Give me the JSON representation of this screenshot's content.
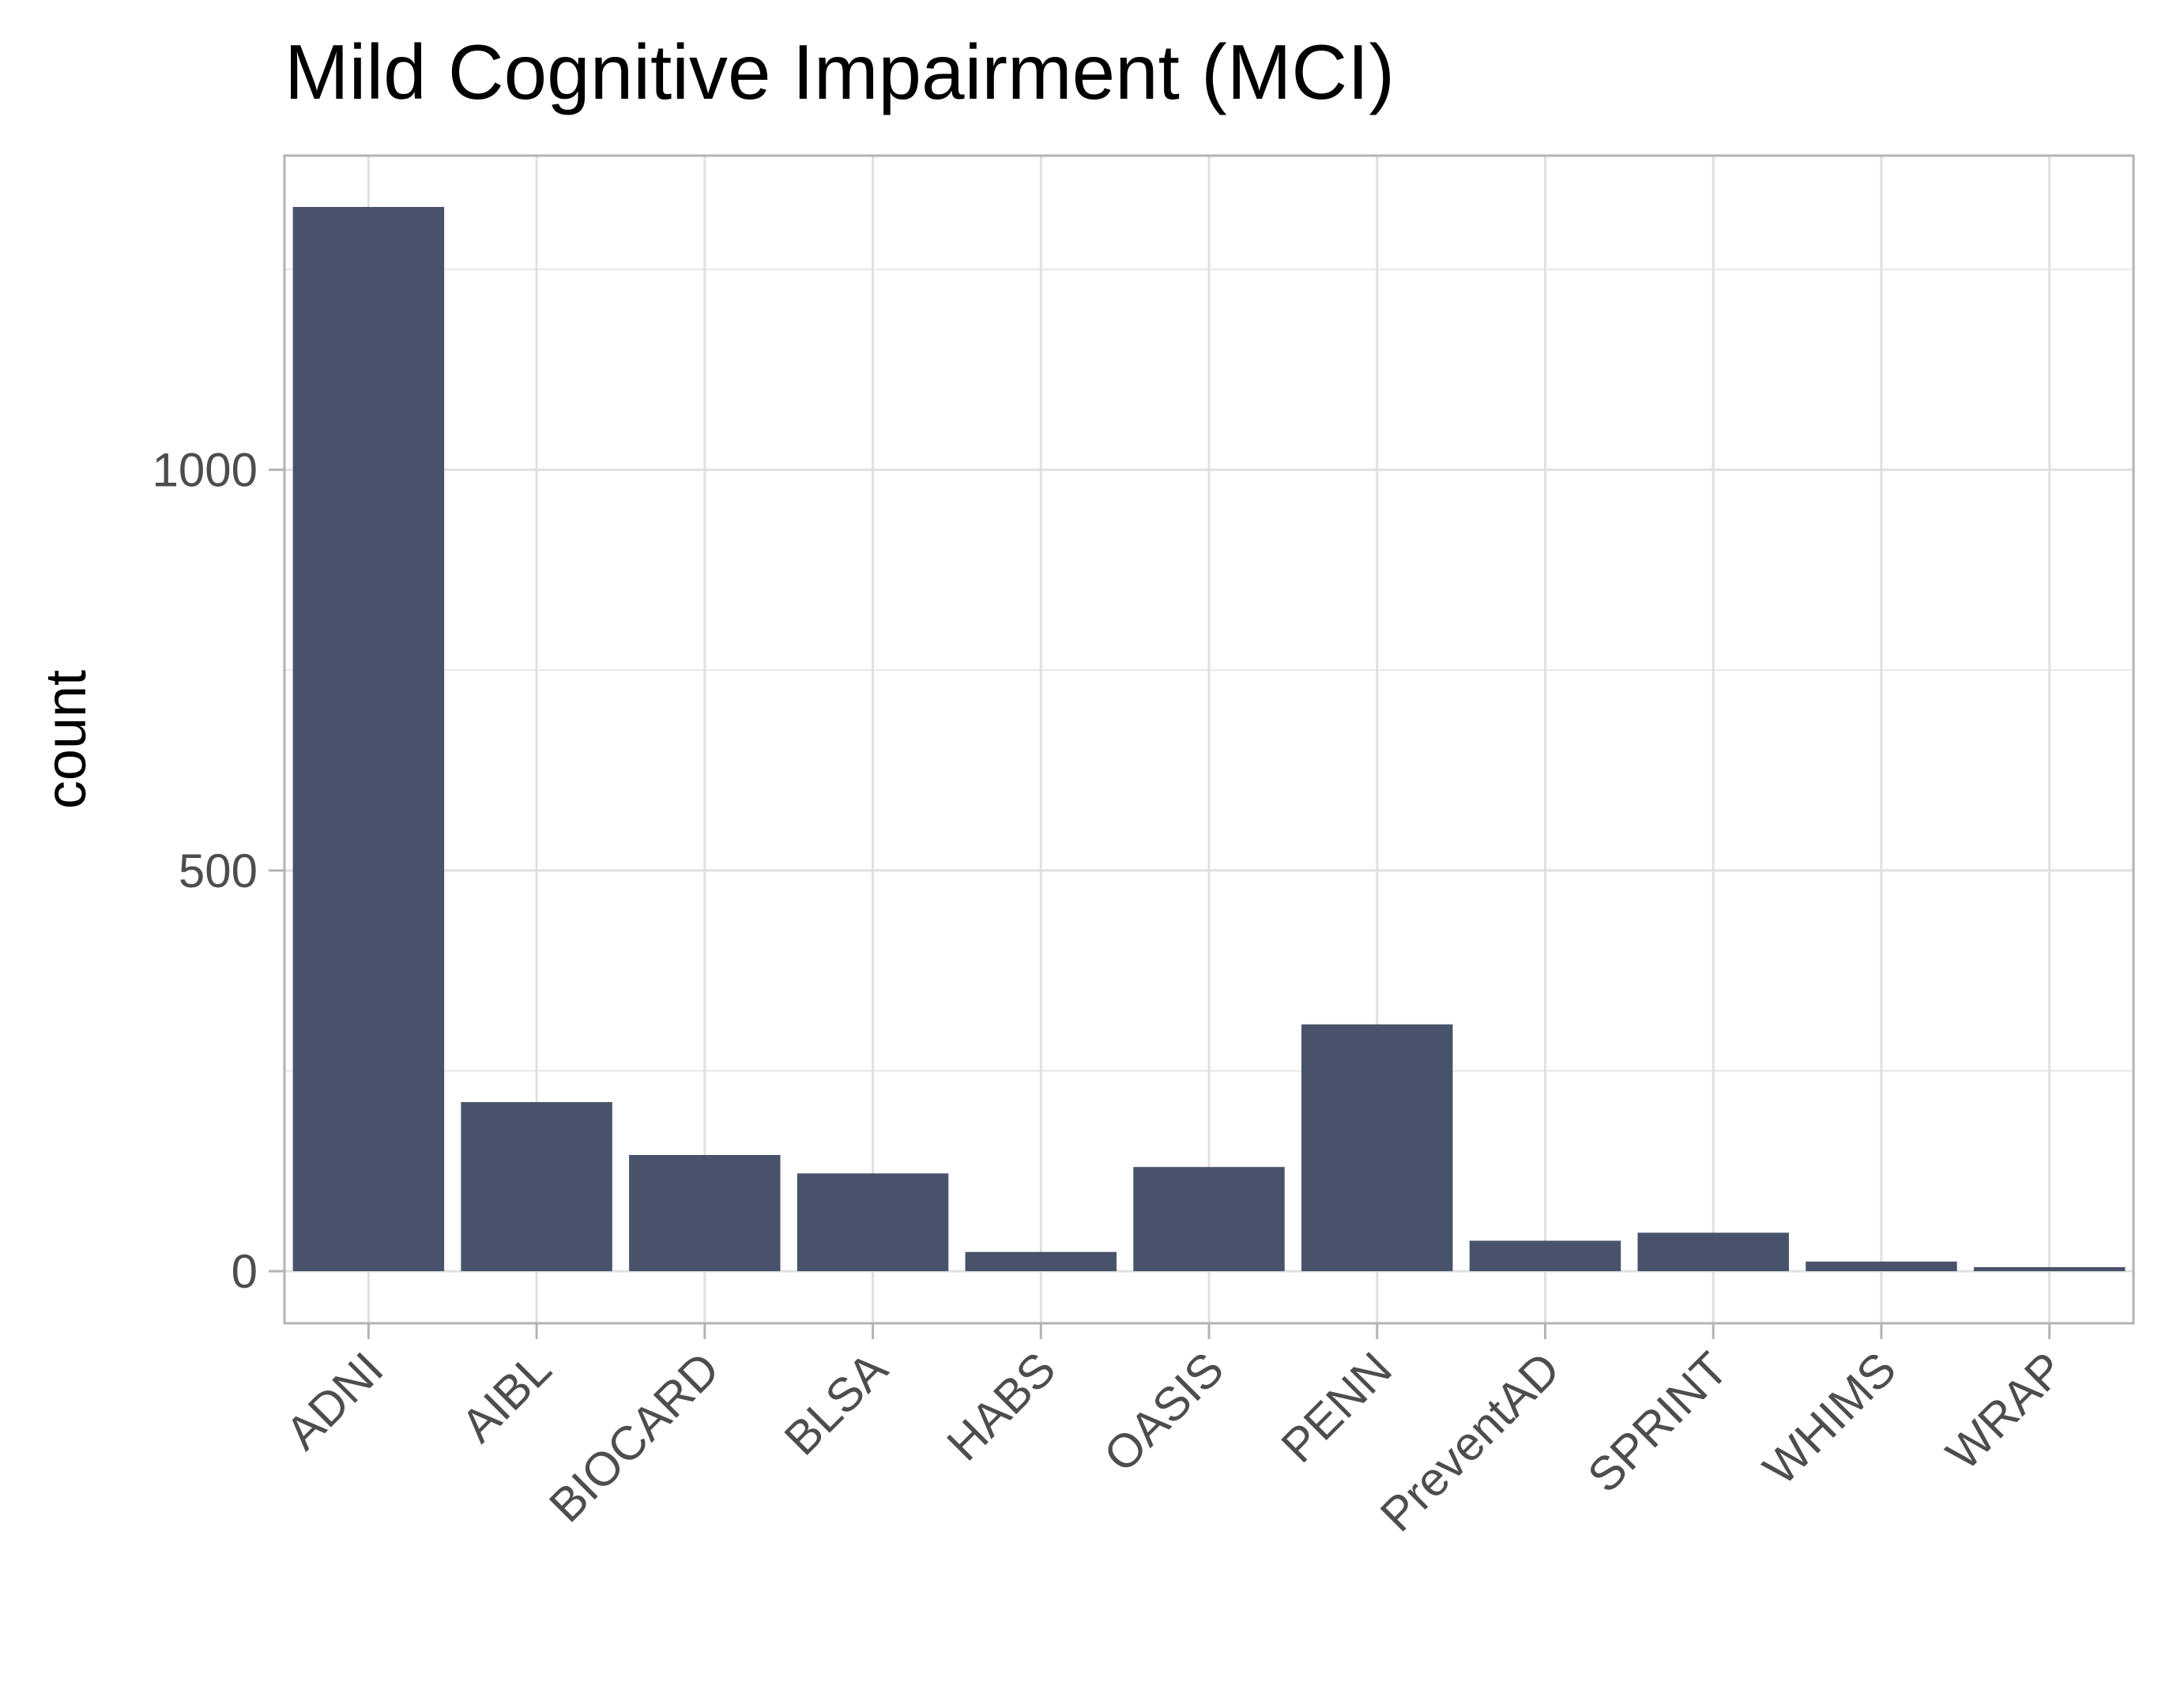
{
  "chart_data": {
    "type": "bar",
    "title": "Mild Cognitive Impairment (MCI)",
    "xlabel": "",
    "ylabel": "count",
    "categories": [
      "ADNI",
      "AIBL",
      "BIOCARD",
      "BLSA",
      "HABS",
      "OASIS",
      "PENN",
      "PreventAD",
      "SPRINT",
      "WHIMS",
      "WRAP"
    ],
    "values": [
      1328,
      211,
      145,
      122,
      24,
      130,
      308,
      38,
      48,
      12,
      5
    ],
    "ylim": [
      -65,
      1392
    ],
    "yticks": [
      0,
      500,
      1000
    ],
    "ytick_labels": [
      "0",
      "500",
      "1000"
    ],
    "grid": true,
    "colors": {
      "bar": "#48536b",
      "panel_border": "#b3b3b3",
      "grid": "#e0e0e0"
    }
  }
}
